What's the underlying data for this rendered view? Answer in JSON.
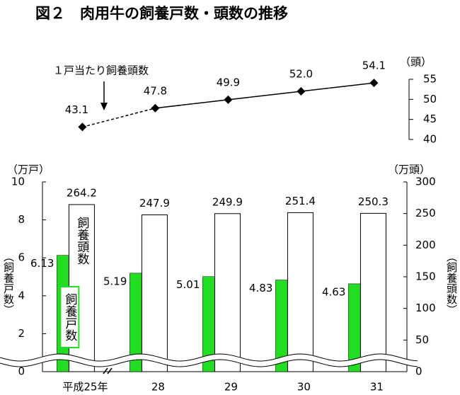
{
  "chart_data": [
    {
      "type": "line",
      "title": "図２　肉用牛の飼養戸数・頭数の推移",
      "annotation": "１戸当たり飼養頭数",
      "y_unit": "（頭）",
      "ylim": [
        40,
        55
      ],
      "yticks": [
        40,
        45,
        50,
        55
      ],
      "first_segment_style": "dashed",
      "series": [
        {
          "color": "#000000",
          "values": [
            43.1,
            47.8,
            49.9,
            52.0,
            54.1
          ],
          "value_labels": [
            "43.1",
            "47.8",
            "49.9",
            "52.0",
            "54.1"
          ]
        }
      ]
    },
    {
      "type": "bar",
      "categories": [
        "平成25年",
        "28",
        "29",
        "30",
        "31"
      ],
      "y_unit": "（万戸）",
      "y2_unit": "（万頭）",
      "y_label": "（飼養戸数）",
      "y2_label": "（飼養頭数）",
      "ylim": [
        0,
        10
      ],
      "yticks": [
        0,
        2,
        4,
        6,
        8,
        10
      ],
      "y2lim": [
        0,
        300
      ],
      "y2ticks": [
        0,
        50,
        100,
        150,
        200,
        250,
        300
      ],
      "axis_break": true,
      "series": [
        {
          "name": "飼養戸数",
          "color": "#22dd22",
          "values": [
            6.13,
            5.19,
            5.01,
            4.83,
            4.63
          ]
        },
        {
          "name": "飼養頭数",
          "color": "#ffffff",
          "axis": "y2",
          "values": [
            264.2,
            247.9,
            249.9,
            251.4,
            250.3
          ]
        }
      ]
    }
  ]
}
